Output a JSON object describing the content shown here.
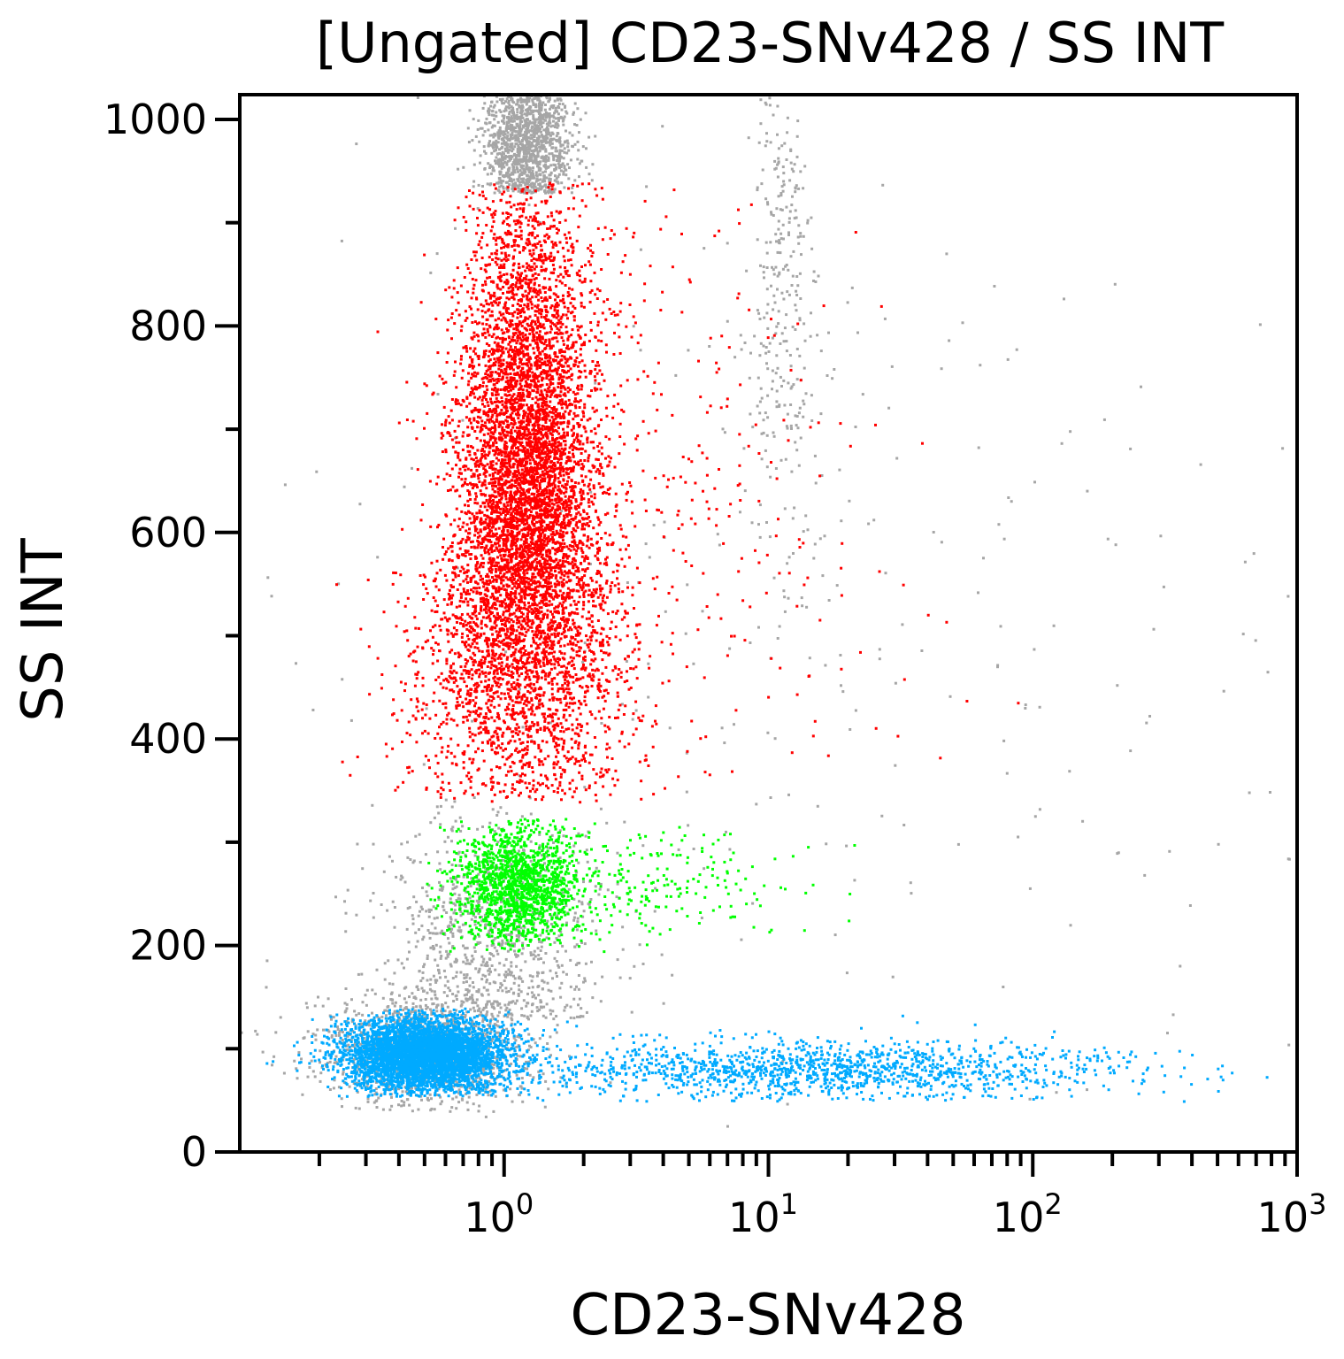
{
  "chart_data": {
    "type": "scatter",
    "title": "[Ungated] CD23-SNv428 / SS INT",
    "xlabel": "CD23-SNv428",
    "ylabel": "SS INT",
    "x_scale": "log",
    "xlim": [
      0.1,
      1000
    ],
    "ylim": [
      0,
      1024
    ],
    "x_ticks": [
      {
        "value": 1,
        "base": "10",
        "exp": "0"
      },
      {
        "value": 10,
        "base": "10",
        "exp": "1"
      },
      {
        "value": 100,
        "base": "10",
        "exp": "2"
      },
      {
        "value": 1000,
        "base": "10",
        "exp": "3"
      }
    ],
    "y_ticks": [
      "0",
      "200",
      "400",
      "600",
      "800",
      "1000"
    ],
    "grid": false,
    "legend": "none",
    "populations": [
      {
        "color": "#a6a6a6",
        "count": 300,
        "x_log10_mean": 0.9,
        "x_log10_sd": 1.0,
        "y_mean": 500,
        "y_sd": 300,
        "y_min": 0,
        "y_max": 1024
      },
      {
        "color": "#a6a6a6",
        "count": 1300,
        "x_log10_mean": -0.3,
        "x_log10_sd": 0.2,
        "y_mean": 100,
        "y_sd": 30,
        "y_min": 40,
        "y_max": 200
      },
      {
        "color": "#a6a6a6",
        "count": 900,
        "x_log10_mean": -0.05,
        "x_log10_sd": 0.2,
        "y_mean": 200,
        "y_sd": 70,
        "y_min": 130,
        "y_max": 345
      },
      {
        "color": "#a6a6a6",
        "count": 1300,
        "x_log10_mean": 0.08,
        "x_log10_sd": 0.08,
        "y_mean": 980,
        "y_sd": 45,
        "y_min": 930,
        "y_max": 1024
      },
      {
        "color": "#a6a6a6",
        "count": 300,
        "x_log10_mean": 1.05,
        "x_log10_sd": 0.05,
        "y_mean": 850,
        "y_sd": 150,
        "y_min": 450,
        "y_max": 1024
      },
      {
        "color": "#ff0000",
        "count": 7500,
        "x_log10_mean": 0.08,
        "x_log10_sd": 0.13,
        "y_mean": 620,
        "y_sd": 160,
        "y_min": 340,
        "y_max": 940
      },
      {
        "color": "#ff0000",
        "count": 300,
        "x_log10_mean": 0.7,
        "x_log10_sd": 0.3,
        "y_mean": 620,
        "y_sd": 160,
        "y_min": 360,
        "y_max": 940
      },
      {
        "color": "#00ff00",
        "count": 1500,
        "x_log10_mean": 0.05,
        "x_log10_sd": 0.12,
        "y_mean": 260,
        "y_sd": 30,
        "y_min": 195,
        "y_max": 325
      },
      {
        "color": "#00ff00",
        "count": 200,
        "x_log10_mean": 0.6,
        "x_log10_sd": 0.25,
        "y_mean": 260,
        "y_sd": 30,
        "y_min": 195,
        "y_max": 325
      },
      {
        "color": "#00aaff",
        "count": 4500,
        "x_log10_mean": -0.3,
        "x_log10_sd": 0.15,
        "y_mean": 95,
        "y_sd": 18,
        "y_min": 55,
        "y_max": 140
      },
      {
        "color": "#00aaff",
        "count": 1400,
        "x_log10_mean": 1.2,
        "x_log10_sd": 0.6,
        "y_mean": 80,
        "y_sd": 15,
        "y_min": 50,
        "y_max": 135
      }
    ]
  }
}
